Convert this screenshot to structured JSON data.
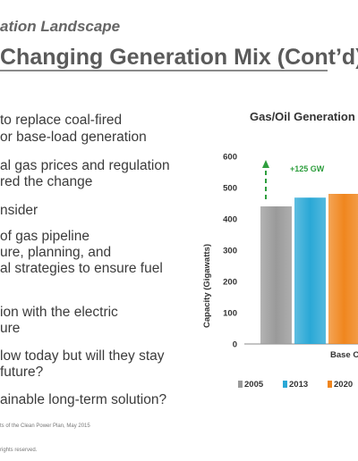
{
  "header": {
    "section": "ation Landscape",
    "title": "Changing Generation Mix (Cont’d)"
  },
  "bullets": [
    "to replace coal-fired",
    "or base-load generation",
    "al gas prices and regulation",
    "red the change",
    "nsider",
    "of gas pipeline",
    "ure, planning, and",
    "al strategies to ensure fuel",
    "ion with the electric",
    "ure",
    "low today but will they stay",
    "future?",
    "ainable long-term solution?"
  ],
  "footnotes": {
    "source": "ts of the Clean Power Plan, May 2015",
    "rights": "rights reserved."
  },
  "chart_data": {
    "type": "bar",
    "title": "Gas/Oil Generation",
    "ylabel": "Capacity (Gigawatts)",
    "xlabel": "Base C",
    "ylim": [
      0,
      600
    ],
    "yticks": [
      0,
      100,
      200,
      300,
      400,
      500,
      600
    ],
    "series": [
      {
        "name": "2005",
        "color": "#9a9a9a",
        "value": 440
      },
      {
        "name": "2013",
        "color": "#2aa8d6",
        "value": 468
      },
      {
        "name": "2020",
        "color": "#f0861e",
        "value": 480
      }
    ],
    "annotation": {
      "text": "+125 GW",
      "color": "#2e9e3e"
    }
  }
}
